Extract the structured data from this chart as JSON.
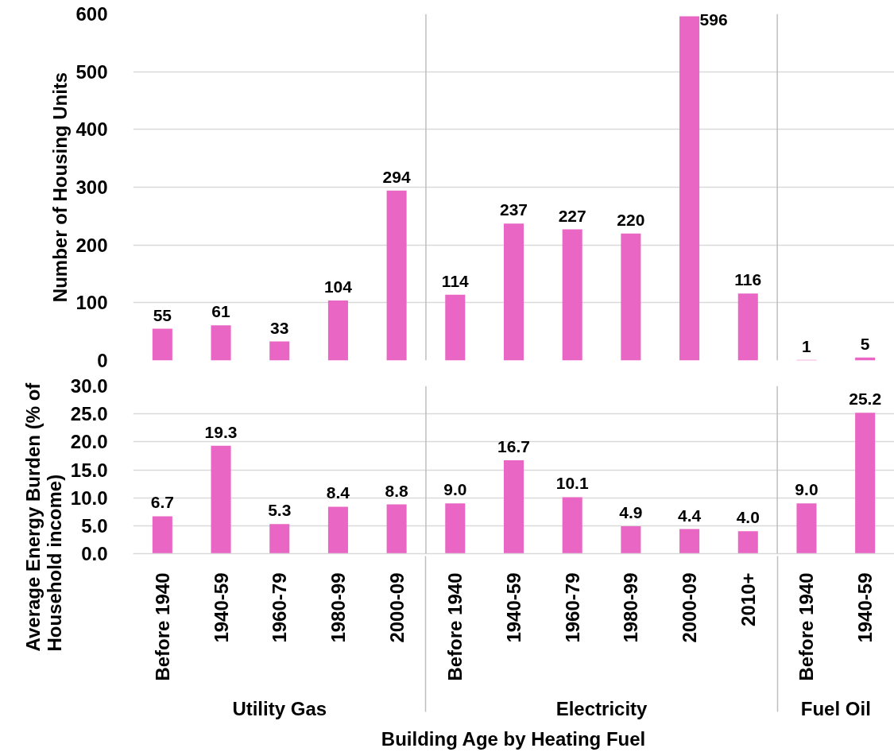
{
  "chart_data": [
    {
      "type": "bar",
      "ylabel": "Number of Housing Units",
      "categories": [
        "Before 1940",
        "1940-59",
        "1960-79",
        "1980-99",
        "2000-09",
        "Before 1940",
        "1940-59",
        "1960-79",
        "1980-99",
        "2000-09",
        "2010+",
        "Before 1940",
        "1940-59"
      ],
      "series": [
        {
          "color": "#ea66c4",
          "values": [
            55,
            61,
            33,
            104,
            294,
            null,
            null,
            null,
            null,
            null,
            null,
            null,
            null
          ]
        },
        {
          "color": "#ea66c4",
          "values": [
            null,
            null,
            null,
            null,
            null,
            114,
            237,
            227,
            220,
            596,
            116,
            null,
            null
          ]
        },
        {
          "color": "#ea66c4",
          "values": [
            null,
            null,
            null,
            null,
            null,
            null,
            null,
            null,
            null,
            null,
            null,
            1,
            5
          ]
        }
      ],
      "ylim": [
        0,
        600
      ],
      "yticks": [
        0,
        100,
        200,
        300,
        400,
        500,
        600
      ],
      "grid": "y",
      "data_labels": true,
      "tick_labels": "y"
    },
    {
      "type": "bar",
      "xlabel": "Building Age by Heating Fuel",
      "ylabel": "Average Energy Burden (% of Household income)",
      "annotations": [
        "Utility Gas",
        "Electricity",
        "Fuel Oil"
      ],
      "categories": [
        "Before 1940",
        "1940-59",
        "1960-79",
        "1980-99",
        "2000-09",
        "Before 1940",
        "1940-59",
        "1960-79",
        "1980-99",
        "2000-09",
        "2010+",
        "Before 1940",
        "1940-59"
      ],
      "series": [
        {
          "color": "#ea66c4",
          "values": [
            6.7,
            19.3,
            5.3,
            8.4,
            8.8,
            null,
            null,
            null,
            null,
            null,
            null,
            null,
            null
          ],
          "value_labels": [
            "6.7",
            "19.3",
            "5.3",
            "8.4",
            "8.8",
            null,
            null,
            null,
            null,
            null,
            null,
            null,
            null
          ]
        },
        {
          "color": "#ea66c4",
          "values": [
            null,
            null,
            null,
            null,
            null,
            9.0,
            16.7,
            10.1,
            4.9,
            4.4,
            4.0,
            null,
            null
          ],
          "value_labels": [
            null,
            null,
            null,
            null,
            null,
            "9.0",
            "16.7",
            "10.1",
            "4.9",
            "4.4",
            "4.0",
            null,
            null
          ]
        },
        {
          "color": "#ea66c4",
          "values": [
            null,
            null,
            null,
            null,
            null,
            null,
            null,
            null,
            null,
            null,
            null,
            9.0,
            25.2
          ],
          "value_labels": [
            null,
            null,
            null,
            null,
            null,
            null,
            null,
            null,
            null,
            null,
            null,
            "9.0",
            "25.2"
          ]
        }
      ],
      "ylim": [
        0,
        30
      ],
      "yticks": [
        {
          "value": 0,
          "label": "0.0"
        },
        {
          "value": 5,
          "label": "5.0"
        },
        {
          "value": 10,
          "label": "10.0"
        },
        {
          "value": 15,
          "label": "15.0"
        },
        {
          "value": 20,
          "label": "20.0"
        },
        {
          "value": 25,
          "label": "25.0"
        },
        {
          "value": 30,
          "label": "30.0"
        }
      ],
      "grid": "y"
    }
  ]
}
